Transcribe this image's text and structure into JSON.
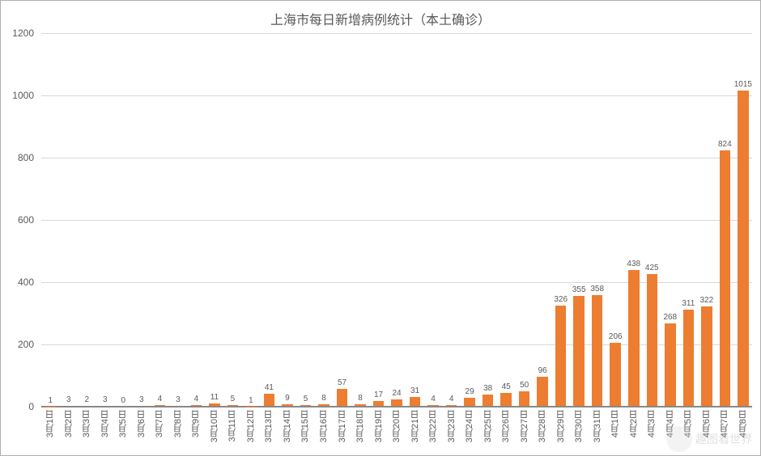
{
  "chart": {
    "type": "bar",
    "title": "上海市每日新增病例统计（本土确诊）",
    "title_fontsize": 16,
    "title_color": "#595959",
    "background_color": "#ffffff",
    "border_color": "#b0b0b0",
    "grid_color": "#d9d9d9",
    "axis_text_color": "#595959",
    "bar_color": "#ed7d31",
    "data_label_color": "#595959",
    "data_label_fontsize": 10,
    "xlabel_fontsize": 11,
    "ylabel_fontsize": 12,
    "bar_width": 0.6,
    "ylim": [
      0,
      1200
    ],
    "ytick_step": 200,
    "yticks": [
      0,
      200,
      400,
      600,
      800,
      1000,
      1200
    ],
    "categories": [
      "3月1日",
      "3月2日",
      "3月3日",
      "3月4日",
      "3月5日",
      "3月6日",
      "3月7日",
      "3月8日",
      "3月9日",
      "3月10日",
      "3月11日",
      "3月12日",
      "3月13日",
      "3月14日",
      "3月15日",
      "3月16日",
      "3月17日",
      "3月18日",
      "3月19日",
      "3月20日",
      "3月21日",
      "3月22日",
      "3月23日",
      "3月24日",
      "3月25日",
      "3月26日",
      "3月27日",
      "3月28日",
      "3月29日",
      "3月30日",
      "3月31日",
      "4月1日",
      "4月2日",
      "4月3日",
      "4月4日",
      "4月5日",
      "4月6日",
      "4月7日",
      "4月8日"
    ],
    "values": [
      1,
      3,
      2,
      3,
      0,
      3,
      4,
      3,
      4,
      11,
      5,
      1,
      41,
      9,
      5,
      8,
      57,
      8,
      17,
      24,
      31,
      4,
      4,
      29,
      38,
      45,
      50,
      96,
      326,
      355,
      358,
      206,
      438,
      425,
      268,
      311,
      322,
      824,
      1015
    ],
    "watermark": "趣图看世界"
  }
}
